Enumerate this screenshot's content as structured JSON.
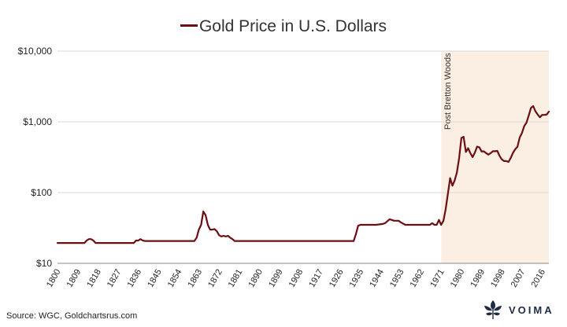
{
  "chart_data": {
    "type": "line",
    "title": "Gold Price in U.S. Dollars",
    "yscale": "log",
    "ylim": [
      10,
      10000
    ],
    "xlim": [
      1800,
      2019
    ],
    "yticks": [
      10,
      100,
      1000,
      10000
    ],
    "ytick_labels": [
      "$10",
      "$100",
      "$1,000",
      "$10,000"
    ],
    "xticks": [
      1800,
      1809,
      1818,
      1827,
      1836,
      1845,
      1854,
      1863,
      1872,
      1881,
      1890,
      1899,
      1908,
      1917,
      1926,
      1935,
      1944,
      1953,
      1962,
      1971,
      1980,
      1989,
      1998,
      2007,
      2016
    ],
    "grid": "horizontal",
    "annotation": {
      "label": "Post Bretton Woods",
      "start": 1971,
      "end": 2019,
      "color": "#fbeee3"
    },
    "series": [
      {
        "name": "Gold Price in U.S. Dollars",
        "color": "#6b0f12",
        "x": [
          1800,
          1812,
          1813,
          1814,
          1815,
          1816,
          1817,
          1834,
          1835,
          1836,
          1837,
          1838,
          1839,
          1840,
          1861,
          1862,
          1863,
          1864,
          1865,
          1866,
          1867,
          1868,
          1869,
          1870,
          1871,
          1872,
          1873,
          1874,
          1875,
          1876,
          1877,
          1878,
          1879,
          1932,
          1933,
          1934,
          1935,
          1940,
          1942,
          1945,
          1946,
          1948,
          1949,
          1950,
          1952,
          1953,
          1955,
          1960,
          1963,
          1966,
          1967,
          1968,
          1969,
          1970,
          1971,
          1972,
          1973,
          1974,
          1975,
          1976,
          1977,
          1978,
          1979,
          1980,
          1981,
          1982,
          1983,
          1984,
          1985,
          1986,
          1987,
          1988,
          1989,
          1990,
          1991,
          1992,
          1993,
          1994,
          1995,
          1996,
          1997,
          1998,
          1999,
          2000,
          2001,
          2002,
          2003,
          2004,
          2005,
          2006,
          2007,
          2008,
          2009,
          2010,
          2011,
          2012,
          2013,
          2014,
          2015,
          2016,
          2017,
          2018,
          2019
        ],
        "values": [
          19.4,
          19.4,
          21,
          22,
          22,
          21,
          19.4,
          19.4,
          21,
          21,
          22,
          21,
          20.7,
          20.7,
          20.7,
          23,
          30,
          35,
          54,
          48,
          35,
          30,
          30,
          30.5,
          28.5,
          25,
          24,
          24.5,
          24,
          24.5,
          23,
          22,
          20.7,
          20.7,
          26,
          34,
          35,
          35,
          35,
          36,
          37,
          42,
          41,
          40,
          40,
          38,
          35,
          35,
          35,
          35,
          37,
          35,
          35,
          41,
          35,
          40,
          58,
          97,
          160,
          125,
          148,
          193,
          306,
          590,
          615,
          375,
          424,
          360,
          317,
          368,
          446,
          437,
          381,
          383,
          362,
          344,
          360,
          384,
          384,
          388,
          331,
          294,
          279,
          279,
          271,
          310,
          364,
          410,
          445,
          604,
          695,
          872,
          972,
          1225,
          1572,
          1669,
          1411,
          1266,
          1160,
          1251,
          1257,
          1268,
          1393
        ]
      }
    ]
  },
  "legend": {
    "label": "Gold Price in U.S. Dollars"
  },
  "source": "Source: WGC, Goldchartsrus.com",
  "brand": {
    "name": "VOIMA"
  }
}
